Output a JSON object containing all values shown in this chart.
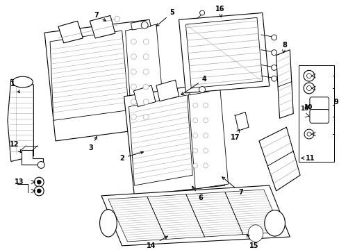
{
  "bg_color": "#ffffff",
  "line_color": "#000000",
  "gray_color": "#666666",
  "light_gray": "#aaaaaa",
  "fig_width": 4.89,
  "fig_height": 3.6,
  "dpi": 100
}
